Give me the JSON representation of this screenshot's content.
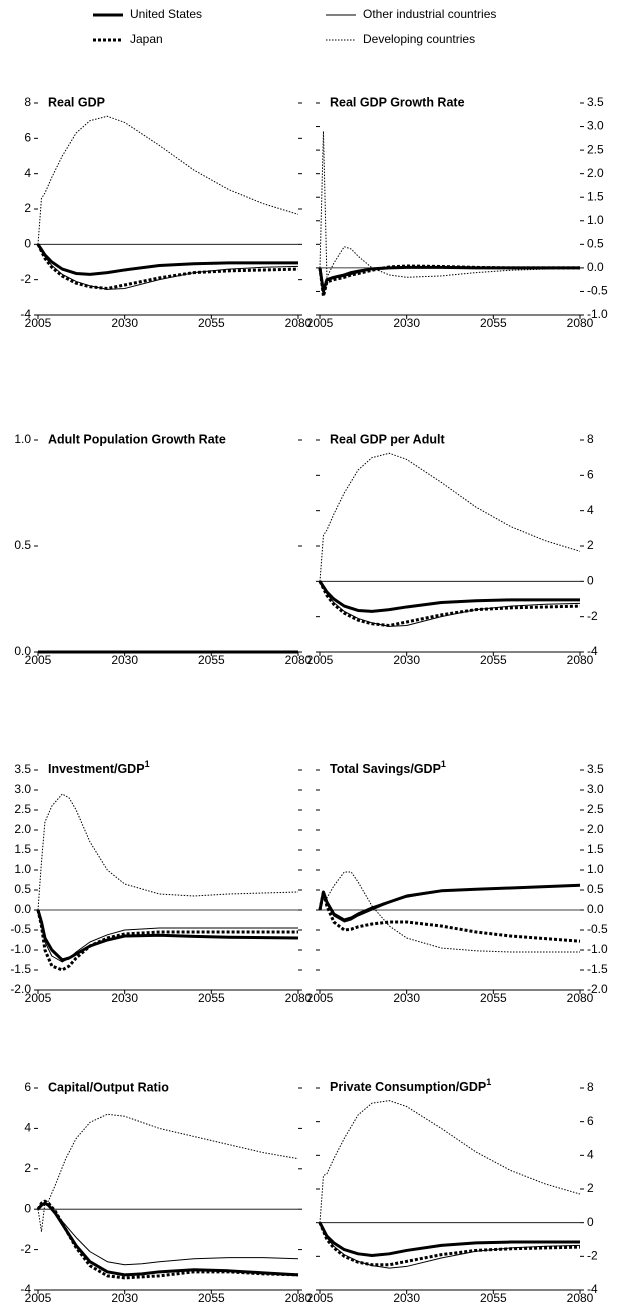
{
  "chart_data": [
    {
      "type": "line",
      "title": "Real GDP",
      "x": [
        2005,
        2006,
        2007,
        2009,
        2012,
        2016,
        2020,
        2025,
        2030,
        2040,
        2050,
        2060,
        2070,
        2080
      ],
      "series": [
        {
          "name": "United States",
          "color": "#000000",
          "style": "solid",
          "weight": "thick",
          "values": [
            0,
            -0.3,
            -0.6,
            -1.0,
            -1.4,
            -1.65,
            -1.7,
            -1.6,
            -1.45,
            -1.2,
            -1.1,
            -1.05,
            -1.05,
            -1.05
          ]
        },
        {
          "name": "Other industrial countries",
          "color": "#000000",
          "style": "solid",
          "weight": "thin",
          "values": [
            0,
            -0.35,
            -0.7,
            -1.2,
            -1.7,
            -2.1,
            -2.35,
            -2.55,
            -2.5,
            -2.0,
            -1.6,
            -1.4,
            -1.3,
            -1.25
          ]
        },
        {
          "name": "Japan",
          "color": "#000000",
          "style": "dotted",
          "weight": "thick",
          "values": [
            0,
            -0.4,
            -0.8,
            -1.3,
            -1.8,
            -2.2,
            -2.4,
            -2.5,
            -2.3,
            -1.9,
            -1.6,
            -1.5,
            -1.45,
            -1.4
          ]
        },
        {
          "name": "Developing countries",
          "color": "#000000",
          "style": "dotted",
          "weight": "thin",
          "values": [
            0,
            2.6,
            2.9,
            3.8,
            5.0,
            6.3,
            7.0,
            7.25,
            6.9,
            5.6,
            4.2,
            3.1,
            2.3,
            1.7
          ]
        }
      ],
      "xlim": [
        2005,
        2080
      ],
      "xticks": [
        2005,
        2030,
        2055,
        2080
      ],
      "ylim": [
        -4,
        8
      ],
      "yticks": [
        -4,
        -2,
        0,
        2,
        4,
        6,
        8
      ],
      "zero_line": true
    },
    {
      "type": "line",
      "title": "Real GDP Growth Rate",
      "x": [
        2005,
        2006,
        2007,
        2009,
        2012,
        2014,
        2016,
        2020,
        2025,
        2030,
        2040,
        2050,
        2060,
        2080
      ],
      "series": [
        {
          "name": "United States",
          "color": "#000000",
          "style": "solid",
          "weight": "thick",
          "values": [
            0,
            -0.5,
            -0.25,
            -0.2,
            -0.15,
            -0.1,
            -0.07,
            -0.02,
            0,
            0.01,
            0.01,
            0,
            0,
            0
          ]
        },
        {
          "name": "Other industrial countries",
          "color": "#000000",
          "style": "solid",
          "weight": "thin",
          "values": [
            0,
            -0.55,
            -0.28,
            -0.22,
            -0.18,
            -0.14,
            -0.1,
            -0.03,
            0.01,
            0.03,
            0.03,
            0.02,
            0.01,
            0
          ]
        },
        {
          "name": "Japan",
          "color": "#000000",
          "style": "dotted",
          "weight": "thick",
          "values": [
            0,
            -0.6,
            -0.3,
            -0.25,
            -0.2,
            -0.15,
            -0.12,
            -0.05,
            0.02,
            0.04,
            0.03,
            0.01,
            0,
            0
          ]
        },
        {
          "name": "Developing countries",
          "color": "#000000",
          "style": "dotted",
          "weight": "thin",
          "values": [
            0,
            2.9,
            -0.2,
            0.1,
            0.45,
            0.4,
            0.25,
            0,
            -0.15,
            -0.2,
            -0.17,
            -0.1,
            -0.05,
            0
          ]
        }
      ],
      "xlim": [
        2005,
        2080
      ],
      "xticks": [
        2005,
        2030,
        2055,
        2080
      ],
      "ylim": [
        -1,
        3.5
      ],
      "yticks": [
        {
          "value": -1,
          "label": "-1.0"
        },
        -0.5,
        {
          "value": 0,
          "label": "0.0"
        },
        0.5,
        {
          "value": 1,
          "label": "1.0"
        },
        1.5,
        {
          "value": 2,
          "label": "2.0"
        },
        2.5,
        {
          "value": 3,
          "label": "3.0"
        },
        3.5
      ],
      "zero_line": true
    },
    {
      "type": "line",
      "title": "Adult Population Growth Rate",
      "x": [
        2005,
        2080
      ],
      "series": [
        {
          "name": "United States",
          "color": "#000000",
          "style": "solid",
          "weight": "thick",
          "values": [
            0,
            0
          ]
        },
        {
          "name": "Other industrial countries",
          "color": "#000000",
          "style": "solid",
          "weight": "thin",
          "values": [
            0,
            0
          ]
        },
        {
          "name": "Japan",
          "color": "#000000",
          "style": "dotted",
          "weight": "thick",
          "values": [
            0,
            0
          ]
        },
        {
          "name": "Developing countries",
          "color": "#000000",
          "style": "dotted",
          "weight": "thin",
          "values": [
            0,
            0
          ]
        }
      ],
      "xlim": [
        2005,
        2080
      ],
      "xticks": [
        2005,
        2030,
        2055,
        2080
      ],
      "ylim": [
        0,
        1
      ],
      "yticks": [
        {
          "value": 0,
          "label": "0.0"
        },
        0.5,
        {
          "value": 1,
          "label": "1.0"
        }
      ],
      "zero_line": true
    },
    {
      "type": "line",
      "title": "Real GDP per Adult",
      "x": [
        2005,
        2006,
        2007,
        2009,
        2012,
        2016,
        2020,
        2025,
        2030,
        2040,
        2050,
        2060,
        2070,
        2080
      ],
      "series": [
        {
          "name": "United States",
          "color": "#000000",
          "style": "solid",
          "weight": "thick",
          "values": [
            0,
            -0.3,
            -0.6,
            -1.0,
            -1.4,
            -1.65,
            -1.7,
            -1.6,
            -1.45,
            -1.2,
            -1.1,
            -1.05,
            -1.05,
            -1.05
          ]
        },
        {
          "name": "Other industrial countries",
          "color": "#000000",
          "style": "solid",
          "weight": "thin",
          "values": [
            0,
            -0.35,
            -0.7,
            -1.2,
            -1.7,
            -2.1,
            -2.35,
            -2.55,
            -2.5,
            -2.0,
            -1.6,
            -1.4,
            -1.3,
            -1.25
          ]
        },
        {
          "name": "Japan",
          "color": "#000000",
          "style": "dotted",
          "weight": "thick",
          "values": [
            0,
            -0.4,
            -0.8,
            -1.3,
            -1.8,
            -2.2,
            -2.4,
            -2.5,
            -2.3,
            -1.9,
            -1.6,
            -1.5,
            -1.45,
            -1.4
          ]
        },
        {
          "name": "Developing countries",
          "color": "#000000",
          "style": "dotted",
          "weight": "thin",
          "values": [
            0,
            2.6,
            2.9,
            3.8,
            5.0,
            6.3,
            7.0,
            7.25,
            6.9,
            5.6,
            4.2,
            3.1,
            2.3,
            1.7
          ]
        }
      ],
      "xlim": [
        2005,
        2080
      ],
      "xticks": [
        2005,
        2030,
        2055,
        2080
      ],
      "ylim": [
        -4,
        8
      ],
      "yticks": [
        -4,
        -2,
        0,
        2,
        4,
        6,
        8
      ],
      "zero_line": true
    },
    {
      "type": "line",
      "title": "Investment/GDP",
      "title_superscript": "1",
      "x": [
        2005,
        2006,
        2007,
        2009,
        2012,
        2014,
        2016,
        2020,
        2025,
        2030,
        2040,
        2050,
        2060,
        2080
      ],
      "series": [
        {
          "name": "United States",
          "color": "#000000",
          "style": "solid",
          "weight": "thick",
          "values": [
            0,
            -0.3,
            -0.7,
            -1.0,
            -1.25,
            -1.2,
            -1.1,
            -0.9,
            -0.75,
            -0.65,
            -0.63,
            -0.66,
            -0.68,
            -0.7
          ]
        },
        {
          "name": "Other industrial countries",
          "color": "#000000",
          "style": "solid",
          "weight": "thin",
          "values": [
            0,
            -0.35,
            -0.8,
            -1.15,
            -1.3,
            -1.2,
            -1.05,
            -0.8,
            -0.62,
            -0.5,
            -0.45,
            -0.45,
            -0.45,
            -0.45
          ]
        },
        {
          "name": "Japan",
          "color": "#000000",
          "style": "dotted",
          "weight": "thick",
          "values": [
            0,
            -0.4,
            -1.0,
            -1.4,
            -1.5,
            -1.4,
            -1.2,
            -0.9,
            -0.7,
            -0.6,
            -0.55,
            -0.55,
            -0.55,
            -0.55
          ]
        },
        {
          "name": "Developing countries",
          "color": "#000000",
          "style": "dotted",
          "weight": "thin",
          "values": [
            0,
            1.2,
            2.2,
            2.6,
            2.9,
            2.8,
            2.5,
            1.7,
            1.0,
            0.65,
            0.4,
            0.35,
            0.4,
            0.45
          ]
        }
      ],
      "xlim": [
        2005,
        2080
      ],
      "xticks": [
        2005,
        2030,
        2055,
        2080
      ],
      "ylim": [
        -2,
        3.5
      ],
      "yticks": [
        {
          "value": -2,
          "label": "-2.0"
        },
        -1.5,
        {
          "value": -1,
          "label": "-1.0"
        },
        -0.5,
        {
          "value": 0,
          "label": "0.0"
        },
        0.5,
        {
          "value": 1,
          "label": "1.0"
        },
        1.5,
        {
          "value": 2,
          "label": "2.0"
        },
        2.5,
        {
          "value": 3,
          "label": "3.0"
        },
        3.5
      ],
      "zero_line": true
    },
    {
      "type": "line",
      "title": "Total Savings/GDP",
      "title_superscript": "1",
      "x": [
        2005,
        2006,
        2007,
        2009,
        2012,
        2014,
        2016,
        2020,
        2025,
        2030,
        2040,
        2050,
        2060,
        2080
      ],
      "series": [
        {
          "name": "United States",
          "color": "#000000",
          "style": "solid",
          "weight": "thick",
          "values": [
            0,
            0.45,
            0.2,
            -0.1,
            -0.25,
            -0.2,
            -0.1,
            0.05,
            0.2,
            0.35,
            0.48,
            0.52,
            0.55,
            0.62
          ]
        },
        {
          "name": "Other industrial countries",
          "color": "#000000",
          "style": "solid",
          "weight": "thin",
          "values": [
            0,
            0.4,
            0.15,
            -0.15,
            -0.3,
            -0.25,
            -0.15,
            0,
            0.18,
            0.32,
            0.47,
            0.52,
            0.55,
            0.6
          ]
        },
        {
          "name": "Japan",
          "color": "#000000",
          "style": "dotted",
          "weight": "thick",
          "values": [
            0,
            0.45,
            0.1,
            -0.3,
            -0.5,
            -0.48,
            -0.42,
            -0.35,
            -0.3,
            -0.3,
            -0.4,
            -0.55,
            -0.65,
            -0.78
          ]
        },
        {
          "name": "Developing countries",
          "color": "#000000",
          "style": "dotted",
          "weight": "thin",
          "values": [
            0,
            0.35,
            0.3,
            0.6,
            0.95,
            0.95,
            0.7,
            0.1,
            -0.4,
            -0.7,
            -0.95,
            -1.02,
            -1.05,
            -1.05
          ]
        }
      ],
      "xlim": [
        2005,
        2080
      ],
      "xticks": [
        2005,
        2030,
        2055,
        2080
      ],
      "ylim": [
        -2,
        3.5
      ],
      "yticks": [
        {
          "value": -2,
          "label": "-2.0"
        },
        -1.5,
        {
          "value": -1,
          "label": "-1.0"
        },
        -0.5,
        {
          "value": 0,
          "label": "0.0"
        },
        0.5,
        {
          "value": 1,
          "label": "1.0"
        },
        1.5,
        {
          "value": 2,
          "label": "2.0"
        },
        2.5,
        {
          "value": 3,
          "label": "3.0"
        },
        3.5
      ],
      "zero_line": true
    },
    {
      "type": "line",
      "title": "Capital/Output Ratio",
      "x": [
        2005,
        2006,
        2007,
        2008,
        2010,
        2013,
        2016,
        2020,
        2025,
        2030,
        2035,
        2040,
        2050,
        2060,
        2070,
        2080
      ],
      "series": [
        {
          "name": "United States",
          "color": "#000000",
          "style": "solid",
          "weight": "thick",
          "values": [
            0,
            0.2,
            0.3,
            0.2,
            -0.2,
            -1.0,
            -1.8,
            -2.6,
            -3.1,
            -3.25,
            -3.2,
            -3.1,
            -3.0,
            -3.05,
            -3.15,
            -3.25
          ]
        },
        {
          "name": "Other industrial countries",
          "color": "#000000",
          "style": "solid",
          "weight": "thin",
          "values": [
            0,
            0.2,
            0.25,
            0.15,
            -0.2,
            -0.8,
            -1.4,
            -2.1,
            -2.6,
            -2.75,
            -2.7,
            -2.6,
            -2.45,
            -2.4,
            -2.4,
            -2.45
          ]
        },
        {
          "name": "Japan",
          "color": "#000000",
          "style": "dotted",
          "weight": "thick",
          "values": [
            0,
            0.3,
            0.4,
            0.3,
            -0.1,
            -1.0,
            -1.9,
            -2.8,
            -3.3,
            -3.4,
            -3.35,
            -3.3,
            -3.1,
            -3.1,
            -3.2,
            -3.25
          ]
        },
        {
          "name": "Developing countries",
          "color": "#000000",
          "style": "dotted",
          "weight": "thin",
          "values": [
            0,
            -1.1,
            0.3,
            0.4,
            1.2,
            2.5,
            3.5,
            4.3,
            4.7,
            4.6,
            4.3,
            4.0,
            3.6,
            3.2,
            2.8,
            2.5
          ]
        }
      ],
      "xlim": [
        2005,
        2080
      ],
      "xticks": [
        2005,
        2030,
        2055,
        2080
      ],
      "ylim": [
        -4,
        6
      ],
      "yticks": [
        -4,
        -2,
        0,
        2,
        4,
        6
      ],
      "zero_line": true
    },
    {
      "type": "line",
      "title": "Private Consumption/GDP",
      "title_superscript": "1",
      "x": [
        2005,
        2006,
        2007,
        2009,
        2012,
        2016,
        2020,
        2025,
        2030,
        2040,
        2050,
        2060,
        2070,
        2080
      ],
      "series": [
        {
          "name": "United States",
          "color": "#000000",
          "style": "solid",
          "weight": "thick",
          "values": [
            0,
            -0.4,
            -0.8,
            -1.2,
            -1.6,
            -1.85,
            -1.95,
            -1.85,
            -1.65,
            -1.35,
            -1.2,
            -1.15,
            -1.15,
            -1.15
          ]
        },
        {
          "name": "Other industrial countries",
          "color": "#000000",
          "style": "solid",
          "weight": "thin",
          "values": [
            0,
            -0.45,
            -0.9,
            -1.4,
            -1.9,
            -2.3,
            -2.55,
            -2.7,
            -2.6,
            -2.1,
            -1.7,
            -1.5,
            -1.4,
            -1.35
          ]
        },
        {
          "name": "Japan",
          "color": "#000000",
          "style": "dotted",
          "weight": "thick",
          "values": [
            0,
            -0.5,
            -1.0,
            -1.5,
            -2.0,
            -2.35,
            -2.5,
            -2.5,
            -2.3,
            -1.9,
            -1.65,
            -1.55,
            -1.5,
            -1.45
          ]
        },
        {
          "name": "Developing countries",
          "color": "#000000",
          "style": "dotted",
          "weight": "thin",
          "values": [
            0,
            2.8,
            2.9,
            3.8,
            5.0,
            6.4,
            7.1,
            7.25,
            6.9,
            5.6,
            4.2,
            3.1,
            2.3,
            1.7
          ]
        }
      ],
      "xlim": [
        2005,
        2080
      ],
      "xticks": [
        2005,
        2030,
        2055,
        2080
      ],
      "ylim": [
        -4,
        8
      ],
      "yticks": [
        -4,
        -2,
        0,
        2,
        4,
        6,
        8
      ],
      "zero_line": true
    }
  ]
}
